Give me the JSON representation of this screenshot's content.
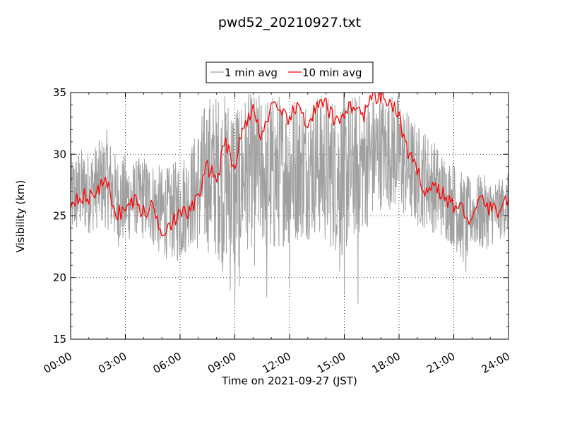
{
  "chart_data": {
    "type": "line",
    "title": "pwd52_20210927.txt",
    "xlabel": "Time on 2021-09-27 (JST)",
    "ylabel": "Visibility (km)",
    "xlim": [
      "00:00",
      "24:00"
    ],
    "ylim": [
      15,
      35
    ],
    "x_ticks": [
      "00:00",
      "03:00",
      "06:00",
      "09:00",
      "12:00",
      "15:00",
      "18:00",
      "21:00",
      "24:00"
    ],
    "y_ticks": [
      "15",
      "20",
      "25",
      "30",
      "35"
    ],
    "grid": true,
    "grid_style": "dotted",
    "legend_position": "top-center, above plot",
    "series": [
      {
        "name": "1 min avg",
        "color": "#a0a0a0",
        "x": [
          "00:00",
          "00:30",
          "01:00",
          "01:30",
          "02:00",
          "02:30",
          "03:00",
          "03:30",
          "04:00",
          "04:30",
          "05:00",
          "05:30",
          "06:00",
          "06:30",
          "07:00",
          "07:30",
          "08:00",
          "08:30",
          "09:00",
          "09:30",
          "10:00",
          "10:30",
          "11:00",
          "11:30",
          "12:00",
          "12:30",
          "13:00",
          "13:30",
          "14:00",
          "14:30",
          "15:00",
          "15:30",
          "16:00",
          "16:30",
          "17:00",
          "17:30",
          "18:00",
          "18:30",
          "19:00",
          "19:30",
          "20:00",
          "20:30",
          "21:00",
          "21:30",
          "22:00",
          "22:30",
          "23:00",
          "23:30",
          "24:00"
        ],
        "band_low": [
          23.0,
          23.5,
          23.5,
          24.0,
          24.0,
          22.5,
          22.5,
          23.5,
          23.0,
          22.5,
          21.5,
          21.5,
          21.0,
          22.5,
          22.0,
          22.0,
          21.5,
          21.0,
          19.5,
          22.0,
          22.5,
          22.5,
          21.0,
          22.5,
          22.5,
          23.0,
          23.0,
          23.5,
          22.5,
          22.0,
          21.5,
          23.0,
          23.5,
          24.5,
          25.5,
          25.5,
          25.0,
          24.5,
          24.0,
          24.0,
          23.5,
          23.0,
          22.5,
          21.0,
          22.5,
          22.0,
          22.5,
          23.0,
          23.5
        ],
        "band_high": [
          30.0,
          30.5,
          30.5,
          31.0,
          32.0,
          30.0,
          30.0,
          29.5,
          30.0,
          29.5,
          29.0,
          29.0,
          30.0,
          30.5,
          32.5,
          35.0,
          35.0,
          35.0,
          35.0,
          35.0,
          35.0,
          35.0,
          35.0,
          35.0,
          35.0,
          35.0,
          35.0,
          35.0,
          35.0,
          35.0,
          35.0,
          35.0,
          35.0,
          35.0,
          35.0,
          35.0,
          35.0,
          33.5,
          32.5,
          32.0,
          31.0,
          30.0,
          29.5,
          28.5,
          28.0,
          28.5,
          28.0,
          28.0,
          28.5
        ],
        "spikes_low": [
          [
            "08:20",
            20.5
          ],
          [
            "08:45",
            19.0
          ],
          [
            "09:00",
            17.8
          ],
          [
            "09:15",
            19.3
          ],
          [
            "10:05",
            21.0
          ],
          [
            "10:45",
            18.4
          ],
          [
            "12:00",
            19.2
          ],
          [
            "14:45",
            20.5
          ],
          [
            "15:00",
            18.6
          ],
          [
            "15:45",
            17.9
          ],
          [
            "21:40",
            20.5
          ],
          [
            "21:45",
            21.8
          ]
        ]
      },
      {
        "name": "10 min avg",
        "color": "#ff0000",
        "x": [
          "00:00",
          "00:30",
          "01:00",
          "01:30",
          "02:00",
          "02:30",
          "03:00",
          "03:30",
          "04:00",
          "04:30",
          "05:00",
          "05:30",
          "06:00",
          "06:30",
          "07:00",
          "07:30",
          "08:00",
          "08:30",
          "09:00",
          "09:30",
          "10:00",
          "10:30",
          "11:00",
          "11:30",
          "12:00",
          "12:30",
          "13:00",
          "13:30",
          "14:00",
          "14:30",
          "15:00",
          "15:30",
          "16:00",
          "16:30",
          "17:00",
          "17:30",
          "18:00",
          "18:30",
          "19:00",
          "19:30",
          "20:00",
          "20:30",
          "21:00",
          "21:30",
          "22:00",
          "22:30",
          "23:00",
          "23:30",
          "24:00"
        ],
        "values": [
          26.0,
          26.8,
          26.3,
          27.3,
          27.6,
          25.2,
          25.5,
          26.3,
          25.2,
          25.8,
          23.8,
          24.5,
          25.0,
          25.4,
          26.5,
          29.0,
          28.0,
          31.0,
          29.0,
          32.5,
          33.5,
          31.5,
          34.0,
          33.0,
          33.0,
          33.8,
          32.5,
          33.8,
          34.0,
          32.5,
          33.5,
          34.0,
          33.0,
          34.5,
          34.6,
          34.2,
          33.0,
          30.0,
          28.5,
          27.0,
          27.5,
          26.5,
          25.8,
          25.5,
          24.5,
          26.5,
          25.5,
          25.5,
          26.5
        ]
      }
    ]
  }
}
